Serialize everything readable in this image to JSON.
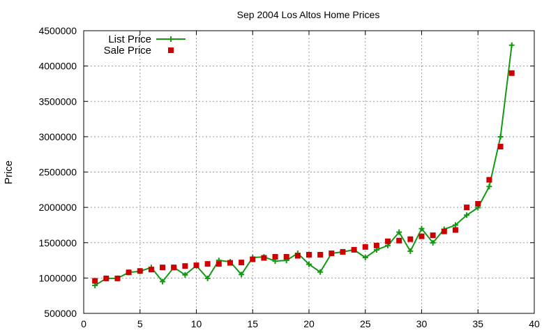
{
  "chart_data": {
    "type": "line",
    "title": "Sep 2004 Los Altos Home Prices",
    "xlabel": "",
    "ylabel": "Price",
    "xlim": [
      0,
      40
    ],
    "ylim": [
      500000,
      4500000
    ],
    "xticks": [
      0,
      5,
      10,
      15,
      20,
      25,
      30,
      35,
      40
    ],
    "yticks": [
      500000,
      1000000,
      1500000,
      2000000,
      2500000,
      3000000,
      3500000,
      4000000,
      4500000
    ],
    "grid": true,
    "legend_position": "top-left",
    "x": [
      1,
      2,
      3,
      4,
      5,
      6,
      7,
      8,
      9,
      10,
      11,
      12,
      13,
      14,
      15,
      16,
      17,
      18,
      19,
      20,
      21,
      22,
      23,
      24,
      25,
      26,
      27,
      28,
      29,
      30,
      31,
      32,
      33,
      34,
      35,
      36,
      37,
      38
    ],
    "series": [
      {
        "name": "List Price",
        "style": "line-plus",
        "color": "#119911",
        "values": [
          895000,
          995000,
          995000,
          1080000,
          1095000,
          1150000,
          950000,
          1150000,
          1045000,
          1175000,
          995000,
          1250000,
          1230000,
          1050000,
          1290000,
          1299000,
          1240000,
          1249000,
          1350000,
          1195000,
          1085000,
          1349000,
          1370000,
          1399000,
          1290000,
          1399000,
          1460000,
          1649000,
          1380000,
          1699000,
          1499000,
          1690000,
          1749000,
          1890000,
          1995000,
          2295000,
          2999000,
          4295000
        ]
      },
      {
        "name": "Sale Price",
        "style": "square-markers",
        "color": "#cc0000",
        "values": [
          960000,
          995000,
          995000,
          1080000,
          1100000,
          1120000,
          1150000,
          1150000,
          1170000,
          1180000,
          1200000,
          1200000,
          1215000,
          1220000,
          1265000,
          1285000,
          1300000,
          1300000,
          1315000,
          1330000,
          1330000,
          1350000,
          1370000,
          1400000,
          1440000,
          1460000,
          1520000,
          1530000,
          1550000,
          1590000,
          1605000,
          1660000,
          1680000,
          2000000,
          2050000,
          2390000,
          2860000,
          3900000
        ]
      }
    ]
  }
}
